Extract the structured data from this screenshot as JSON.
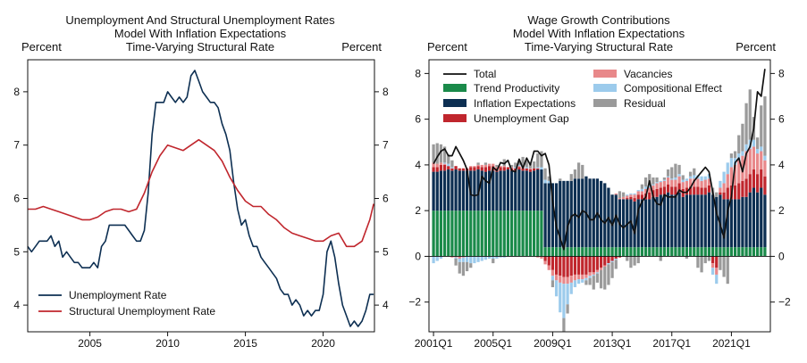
{
  "chart_data": [
    {
      "type": "line",
      "title": [
        "Unemployment And Structural Unemployment Rates",
        "Model With Inflation Expectations",
        "Time-Varying Structural Rate"
      ],
      "ylabel_left": "Percent",
      "ylabel_right": "Percent",
      "x_range": [
        2001.0,
        2023.3
      ],
      "ylim": [
        3.5,
        8.6
      ],
      "x_ticks": [
        2005,
        2010,
        2015,
        2020
      ],
      "x_tick_labels": [
        "2005",
        "2010",
        "2015",
        "2020"
      ],
      "y_ticks": [
        4,
        5,
        6,
        7,
        8
      ],
      "y_tick_labels": [
        "4",
        "5",
        "6",
        "7",
        "8"
      ],
      "legend_position": "bottom-left",
      "series": [
        {
          "name": "Unemployment Rate",
          "color": "#0d2f52",
          "x": [
            2001.0,
            2001.25,
            2001.5,
            2001.75,
            2002.0,
            2002.25,
            2002.5,
            2002.75,
            2003.0,
            2003.25,
            2003.5,
            2003.75,
            2004.0,
            2004.25,
            2004.5,
            2004.75,
            2005.0,
            2005.25,
            2005.5,
            2005.75,
            2006.0,
            2006.25,
            2006.5,
            2006.75,
            2007.0,
            2007.25,
            2007.5,
            2007.75,
            2008.0,
            2008.25,
            2008.5,
            2008.75,
            2009.0,
            2009.25,
            2009.5,
            2009.75,
            2010.0,
            2010.25,
            2010.5,
            2010.75,
            2011.0,
            2011.25,
            2011.5,
            2011.75,
            2012.0,
            2012.25,
            2012.5,
            2012.75,
            2013.0,
            2013.25,
            2013.5,
            2013.75,
            2014.0,
            2014.25,
            2014.5,
            2014.75,
            2015.0,
            2015.25,
            2015.5,
            2015.75,
            2016.0,
            2016.25,
            2016.5,
            2016.75,
            2017.0,
            2017.25,
            2017.5,
            2017.75,
            2018.0,
            2018.25,
            2018.5,
            2018.75,
            2019.0,
            2019.25,
            2019.5,
            2019.75,
            2020.0,
            2020.25,
            2020.5,
            2020.75,
            2021.0,
            2021.25,
            2021.5,
            2021.75,
            2022.0,
            2022.25,
            2022.5,
            2022.75,
            2023.0,
            2023.25
          ],
          "y": [
            5.1,
            5.0,
            5.1,
            5.2,
            5.2,
            5.2,
            5.3,
            5.1,
            5.2,
            4.9,
            5.0,
            4.9,
            4.8,
            4.8,
            4.7,
            4.7,
            4.7,
            4.8,
            4.7,
            5.1,
            5.2,
            5.5,
            5.5,
            5.5,
            5.5,
            5.5,
            5.4,
            5.3,
            5.2,
            5.2,
            5.4,
            6.1,
            7.2,
            7.8,
            7.8,
            7.8,
            8.0,
            7.9,
            7.8,
            7.9,
            7.8,
            7.9,
            8.3,
            8.4,
            8.2,
            8.0,
            7.9,
            7.8,
            7.8,
            7.7,
            7.4,
            7.2,
            6.9,
            6.3,
            5.8,
            5.5,
            5.6,
            5.3,
            5.1,
            5.1,
            4.9,
            4.8,
            4.7,
            4.6,
            4.5,
            4.3,
            4.2,
            4.2,
            4.0,
            4.1,
            4.0,
            3.8,
            3.9,
            3.8,
            3.9,
            3.9,
            4.2,
            5.0,
            5.2,
            4.9,
            4.4,
            4.0,
            3.8,
            3.6,
            3.7,
            3.6,
            3.7,
            3.9,
            4.2,
            4.2
          ]
        },
        {
          "name": "Structural Unemployment Rate",
          "color": "#c0262d",
          "x": [
            2001.0,
            2001.5,
            2002.0,
            2002.5,
            2003.0,
            2003.5,
            2004.0,
            2004.5,
            2005.0,
            2005.5,
            2006.0,
            2006.5,
            2007.0,
            2007.5,
            2008.0,
            2008.5,
            2009.0,
            2009.5,
            2010.0,
            2010.5,
            2011.0,
            2011.5,
            2012.0,
            2012.5,
            2013.0,
            2013.5,
            2014.0,
            2014.5,
            2015.0,
            2015.5,
            2016.0,
            2016.5,
            2017.0,
            2017.5,
            2018.0,
            2018.5,
            2019.0,
            2019.5,
            2020.0,
            2020.5,
            2021.0,
            2021.5,
            2022.0,
            2022.5,
            2023.0,
            2023.25
          ],
          "y": [
            5.8,
            5.8,
            5.85,
            5.8,
            5.75,
            5.7,
            5.65,
            5.6,
            5.6,
            5.65,
            5.75,
            5.8,
            5.8,
            5.75,
            5.8,
            6.1,
            6.5,
            6.8,
            7.0,
            6.95,
            6.9,
            7.0,
            7.1,
            7.0,
            6.9,
            6.7,
            6.4,
            6.15,
            5.95,
            5.85,
            5.85,
            5.7,
            5.6,
            5.45,
            5.35,
            5.3,
            5.25,
            5.2,
            5.2,
            5.3,
            5.35,
            5.1,
            5.1,
            5.2,
            5.6,
            5.9
          ]
        }
      ]
    },
    {
      "type": "bar",
      "stacked": true,
      "title": [
        "Wage Growth Contributions",
        "Model With Inflation Expectations",
        "Time-Varying Structural Rate"
      ],
      "ylabel_left": "Percent",
      "ylabel_right": "Percent",
      "ylim": [
        -3.3,
        8.6
      ],
      "y_ticks": [
        -2,
        0,
        2,
        4,
        6,
        8
      ],
      "y_tick_labels": [
        "−2",
        "0",
        "2",
        "4",
        "6",
        "8"
      ],
      "x_tick_labels": [
        "2001Q1",
        "2005Q1",
        "2009Q1",
        "2013Q1",
        "2017Q1",
        "2021Q1"
      ],
      "legend_position": "top-left",
      "start_year": 2001,
      "quarters": 90,
      "series": [
        {
          "name": "Trend Productivity",
          "color": "#1a8a4a",
          "values": [
            2,
            2,
            2,
            2,
            2,
            2,
            2,
            2,
            2,
            2,
            2,
            2,
            2,
            2,
            2,
            2,
            2,
            2,
            2,
            2,
            2,
            2,
            2,
            2,
            2,
            2,
            2,
            2,
            2,
            2,
            0.4,
            0.4,
            0.4,
            0.4,
            0.4,
            0.4,
            0.4,
            0.4,
            0.4,
            0.4,
            0.4,
            0.4,
            0.4,
            0.4,
            0.4,
            0.4,
            0.4,
            0.4,
            0.4,
            0.4,
            0.4,
            0.4,
            0.4,
            0.4,
            0.4,
            0.4,
            0.4,
            0.4,
            0.4,
            0.4,
            0.4,
            0.4,
            0.4,
            0.4,
            0.4,
            0.4,
            0.4,
            0.4,
            0.4,
            0.4,
            0.4,
            0.4,
            0.4,
            0.4,
            0.4,
            0.4,
            0.4,
            0.4,
            0.4,
            0.4,
            0.4,
            0.4,
            0.4,
            0.4,
            0.4,
            0.4,
            0.4,
            0.4,
            0.4,
            0.4
          ]
        },
        {
          "name": "Inflation Expectations",
          "color": "#0d2f52",
          "values": [
            1.7,
            1.7,
            1.75,
            1.75,
            1.8,
            1.75,
            1.8,
            1.75,
            1.75,
            1.75,
            1.75,
            1.75,
            1.8,
            1.75,
            1.7,
            1.75,
            1.75,
            1.7,
            1.75,
            1.75,
            1.8,
            1.75,
            1.75,
            1.8,
            1.75,
            1.75,
            1.7,
            1.75,
            1.8,
            1.8,
            2.8,
            2.8,
            2.8,
            2.8,
            2.9,
            2.9,
            2.9,
            2.9,
            3.0,
            3.0,
            3.0,
            3.1,
            3.0,
            3.0,
            3.0,
            2.9,
            2.8,
            2.6,
            2.3,
            2.3,
            2.1,
            2.1,
            2.1,
            2.1,
            2.0,
            2.1,
            2.1,
            2.1,
            2.1,
            2.2,
            2.2,
            2.3,
            2.3,
            2.4,
            2.3,
            2.3,
            2.4,
            2.2,
            2.3,
            2.3,
            2.3,
            2.3,
            2.3,
            2.3,
            2.4,
            2.3,
            2.2,
            2.3,
            2.1,
            2.1,
            2.1,
            2.1,
            2.1,
            2.2,
            2.2,
            2.4,
            2.6,
            2.4,
            2.6,
            2.3
          ]
        },
        {
          "name": "Unemployment Gap",
          "color": "#c0262d",
          "values": [
            0.2,
            0.2,
            0.25,
            0.25,
            0.15,
            0.1,
            0.15,
            0.1,
            0.1,
            0.1,
            0.15,
            0.15,
            0.15,
            0.15,
            0.2,
            0.2,
            0.2,
            0.15,
            0.15,
            0.15,
            0.1,
            0.1,
            0.1,
            0.1,
            0.1,
            0.1,
            0.1,
            0.1,
            0.05,
            0.0,
            -0.2,
            -0.4,
            -0.6,
            -0.8,
            -0.85,
            -0.9,
            -0.9,
            -0.85,
            -0.8,
            -0.8,
            -0.8,
            -0.8,
            -0.7,
            -0.7,
            -0.6,
            -0.5,
            -0.4,
            -0.3,
            -0.2,
            -0.1,
            -0.05,
            0.0,
            0.05,
            0.1,
            0.15,
            0.2,
            0.2,
            0.25,
            0.3,
            0.3,
            0.35,
            0.3,
            0.35,
            0.35,
            0.35,
            0.35,
            0.4,
            0.35,
            0.3,
            0.35,
            0.35,
            0.35,
            0.3,
            0.3,
            0.3,
            -0.3,
            -0.5,
            0.1,
            0.3,
            0.5,
            0.6,
            0.6,
            0.7,
            0.7,
            0.8,
            0.8,
            0.8,
            0.8,
            0.8,
            0.8
          ]
        },
        {
          "name": "Vacancies",
          "color": "#e8888a",
          "values": [
            0.2,
            0.15,
            0.1,
            0.05,
            0.0,
            -0.05,
            -0.05,
            -0.1,
            -0.05,
            0.0,
            0.05,
            0.05,
            0.05,
            0.1,
            0.1,
            0.1,
            0.1,
            0.05,
            0.05,
            0.05,
            0.0,
            0.05,
            0.0,
            0.05,
            0.05,
            0.0,
            0.05,
            0.0,
            -0.05,
            -0.1,
            -0.15,
            -0.2,
            -0.25,
            -0.25,
            -0.3,
            -0.3,
            -0.3,
            -0.3,
            -0.25,
            -0.2,
            -0.2,
            -0.15,
            -0.15,
            -0.1,
            -0.1,
            -0.1,
            -0.05,
            0.0,
            0.0,
            0.05,
            0.05,
            0.1,
            0.1,
            0.1,
            0.15,
            0.15,
            0.15,
            0.2,
            0.2,
            0.2,
            0.25,
            0.25,
            0.25,
            0.3,
            0.3,
            0.3,
            0.3,
            0.3,
            0.3,
            0.35,
            0.35,
            0.35,
            0.3,
            0.35,
            0.3,
            -0.2,
            -0.3,
            0.2,
            0.4,
            0.6,
            0.8,
            0.9,
            1.0,
            1.1,
            1.2,
            1.1,
            1.0,
            0.9,
            0.8,
            0.7
          ]
        },
        {
          "name": "Compositional Effect",
          "color": "#9ccbec",
          "values": [
            -0.3,
            -0.2,
            -0.1,
            0.05,
            0.1,
            0.05,
            -0.05,
            -0.15,
            -0.2,
            -0.25,
            -0.3,
            -0.3,
            -0.25,
            -0.2,
            -0.15,
            -0.1,
            -0.1,
            -0.1,
            -0.05,
            -0.05,
            0.0,
            0.0,
            0.05,
            0.05,
            0.05,
            0.05,
            0.0,
            0.0,
            0.05,
            0.1,
            0.15,
            0.1,
            -0.2,
            -0.7,
            -1.3,
            -1.5,
            -0.9,
            -0.5,
            -0.3,
            -0.2,
            -0.15,
            -0.1,
            -0.1,
            -0.05,
            -0.05,
            0.0,
            0.0,
            -0.05,
            -0.05,
            -0.05,
            0.0,
            0.0,
            0.05,
            0.05,
            0.05,
            0.05,
            0.1,
            0.1,
            0.1,
            0.05,
            0.05,
            0.05,
            0.05,
            0.05,
            0.05,
            0.1,
            0.1,
            0.1,
            0.1,
            0.1,
            0.15,
            0.15,
            0.2,
            0.15,
            0.2,
            -0.3,
            -0.4,
            0.3,
            0.5,
            0.5,
            0.4,
            0.3,
            0.3,
            0.2,
            0.3,
            0.4,
            0.3,
            0.2,
            0.2,
            0.2
          ]
        },
        {
          "name": "Residual",
          "color": "#9a9a9a",
          "values": [
            0.8,
            0.9,
            0.8,
            0.7,
            0.4,
            0.3,
            -0.3,
            -0.5,
            -0.6,
            -0.4,
            -0.2,
            0.0,
            0.1,
            0.0,
            0.1,
            0.0,
            -0.2,
            0.1,
            0.0,
            0.3,
            0.0,
            0.1,
            0.2,
            0.2,
            0.4,
            0.3,
            0.2,
            0.3,
            0.6,
            0.7,
            0.5,
            0.2,
            -0.3,
            0.0,
            0.1,
            -0.6,
            -0.4,
            0.3,
            0.4,
            0.7,
            0.6,
            -0.2,
            -0.3,
            -0.6,
            -0.4,
            -0.8,
            -1.0,
            -0.9,
            -0.7,
            -0.4,
            0.3,
            0.2,
            -0.2,
            -0.5,
            -0.4,
            -0.3,
            0.2,
            0.4,
            0.5,
            0.3,
            0.2,
            -0.2,
            0.1,
            0.3,
            0.5,
            0.6,
            0.4,
            0.2,
            -0.1,
            0.2,
            0.3,
            -0.5,
            -0.7,
            -0.3,
            -0.2,
            0.3,
            0.2,
            -0.6,
            -0.9,
            -1.2,
            0.2,
            0.3,
            0.8,
            1.2,
            1.8,
            2.2,
            1.0,
            0.5,
            1.8,
            2.6
          ]
        }
      ],
      "total": {
        "name": "Total",
        "color": "#111111",
        "values": [
          4.05,
          4.35,
          4.6,
          4.7,
          4.4,
          4.4,
          4.8,
          4.5,
          4.2,
          3.8,
          2.7,
          2.65,
          2.7,
          3.5,
          3.3,
          3.2,
          3.9,
          3.75,
          4.1,
          4.05,
          4.2,
          3.75,
          3.7,
          4.25,
          3.85,
          4.3,
          4.0,
          4.6,
          4.6,
          4.4,
          4.5,
          4.0,
          2.4,
          1.3,
          0.8,
          0.3,
          1.3,
          1.75,
          1.85,
          1.7,
          2.0,
          1.9,
          1.6,
          1.6,
          1.9,
          1.6,
          1.45,
          1.7,
          1.35,
          1.8,
          1.4,
          1.25,
          1.4,
          1.55,
          1.0,
          2.05,
          2.4,
          2.6,
          3.3,
          2.6,
          2.3,
          2.25,
          2.7,
          2.6,
          2.6,
          2.6,
          2.9,
          2.8,
          2.8,
          3.0,
          3.3,
          3.5,
          3.7,
          3.9,
          3.7,
          2.8,
          1.9,
          1.4,
          0.8,
          2.0,
          2.6,
          4.1,
          4.3,
          3.7,
          4.5,
          4.8,
          5.6,
          7.2,
          7.0,
          8.2
        ]
      }
    }
  ]
}
